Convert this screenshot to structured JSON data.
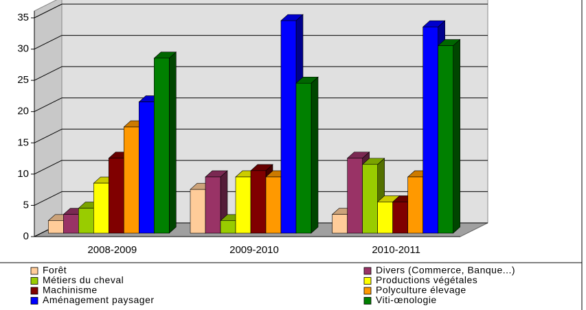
{
  "chart_data": {
    "type": "bar3d",
    "categories": [
      "2008-2009",
      "2009-2010",
      "2010-2011"
    ],
    "series": [
      {
        "name": "Forêt",
        "color": "#FFCC99",
        "values": [
          2,
          7,
          3
        ]
      },
      {
        "name": "Divers (Commerce, Banque...)",
        "color": "#993366",
        "values": [
          3,
          9,
          12
        ]
      },
      {
        "name": "Métiers du cheval",
        "color": "#99CC00",
        "values": [
          4,
          2,
          11
        ]
      },
      {
        "name": "Productions végétales",
        "color": "#FFFF00",
        "values": [
          8,
          9,
          5
        ]
      },
      {
        "name": "Machinisme",
        "color": "#800000",
        "values": [
          12,
          10,
          5
        ]
      },
      {
        "name": "Polyculture élevage",
        "color": "#FF9900",
        "values": [
          17,
          9,
          9
        ]
      },
      {
        "name": "Aménagement paysager",
        "color": "#0000FF",
        "values": [
          21,
          34,
          33
        ]
      },
      {
        "name": "Viti-œnologie",
        "color": "#008000",
        "values": [
          28,
          24,
          30
        ]
      }
    ],
    "ylim": [
      0,
      35
    ],
    "yticks": [
      0,
      5,
      10,
      15,
      20,
      25,
      30,
      35
    ],
    "grid": true
  }
}
